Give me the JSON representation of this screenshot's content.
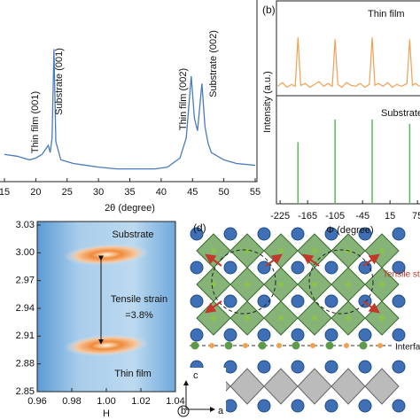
{
  "chart_data": [
    {
      "type": "line",
      "x_label": "2θ (degree)",
      "xlim": [
        15,
        55
      ],
      "ylim": [
        0,
        10
      ],
      "xticks": [
        15,
        20,
        25,
        30,
        35,
        40,
        45,
        50,
        55
      ],
      "annotations": [
        "Thin film (001)",
        "Substrate (001)",
        "Thin film (002)",
        "Substrate (002)"
      ],
      "series": [
        {
          "color": "#4a7bbf",
          "x": [
            15,
            17,
            19,
            20,
            21,
            21.6,
            22,
            22.3,
            22.6,
            22.9,
            23.2,
            24,
            26,
            28,
            30,
            33,
            36,
            39,
            41,
            43,
            44,
            44.8,
            45.3,
            45.8,
            46.5,
            47,
            47.5,
            48,
            50,
            52,
            55
          ],
          "values": [
            1.5,
            1.4,
            1.2,
            1.3,
            1.5,
            1.8,
            2.0,
            1.6,
            2.4,
            7.3,
            2.2,
            1.2,
            1.0,
            0.9,
            0.8,
            0.7,
            0.7,
            0.7,
            0.8,
            1.3,
            2.4,
            5.8,
            3.5,
            2.8,
            5.4,
            3.0,
            2.1,
            1.6,
            1.2,
            1.0,
            0.9
          ]
        }
      ]
    },
    {
      "type": "line",
      "label": "(b)",
      "y_label": "Intensity (a.u.)",
      "x_label": "Φ (degree)",
      "xlim": [
        -233,
        80.5
      ],
      "ylim": [
        0,
        1
      ],
      "xticks": [
        -225,
        -165,
        -105,
        -45,
        15,
        75
      ],
      "series": [
        {
          "name": "Thin film",
          "color": "#f0a050",
          "x": [
            -230,
            -220,
            -210,
            -200,
            -192,
            -186,
            -180,
            -170,
            -160,
            -150,
            -140,
            -130,
            -120,
            -111,
            -105,
            -99,
            -90,
            -80,
            -70,
            -60,
            -50,
            -40,
            -30,
            -24,
            -18,
            -10,
            0,
            10,
            20,
            30,
            40,
            52,
            58,
            64,
            70,
            80
          ],
          "values": [
            0.1,
            0.14,
            0.09,
            0.12,
            0.1,
            0.62,
            0.11,
            0.13,
            0.09,
            0.12,
            0.15,
            0.1,
            0.13,
            0.1,
            0.6,
            0.12,
            0.09,
            0.14,
            0.11,
            0.1,
            0.13,
            0.09,
            0.12,
            0.62,
            0.11,
            0.13,
            0.1,
            0.14,
            0.09,
            0.12,
            0.1,
            0.13,
            0.6,
            0.11,
            0.13,
            0.1
          ]
        },
        {
          "name": "Substrate",
          "color": "#5cb85c",
          "x": [
            -186,
            -105,
            -24,
            58
          ],
          "values": [
            0.57,
            0.78,
            0.78,
            0.74
          ]
        }
      ]
    },
    {
      "type": "map",
      "x_label": "H",
      "xlim": [
        0.96,
        1.04
      ],
      "ylim": [
        2.85,
        3.03
      ],
      "xticks": [
        0.96,
        0.98,
        {
          "value": 1,
          "label": "1.00"
        },
        1.02,
        1.04
      ],
      "yticks": [
        2.85,
        2.88,
        2.91,
        2.94,
        2.97,
        {
          "value": 3,
          "label": "3.00"
        },
        3.03
      ],
      "annotations": [
        "Substrate",
        "Tensile strain",
        "=3.8%",
        "Thin film"
      ],
      "series": [
        {
          "name": "Substrate",
          "x": [
            1.0
          ],
          "values": [
            2.998
          ]
        },
        {
          "name": "Thin film",
          "x": [
            1.0
          ],
          "values": [
            2.9
          ]
        }
      ]
    }
  ],
  "diagram": {
    "label": "(d)",
    "annotations": [
      "Tensile strain",
      "Interface"
    ],
    "axes": [
      "c",
      "b",
      "a"
    ]
  }
}
